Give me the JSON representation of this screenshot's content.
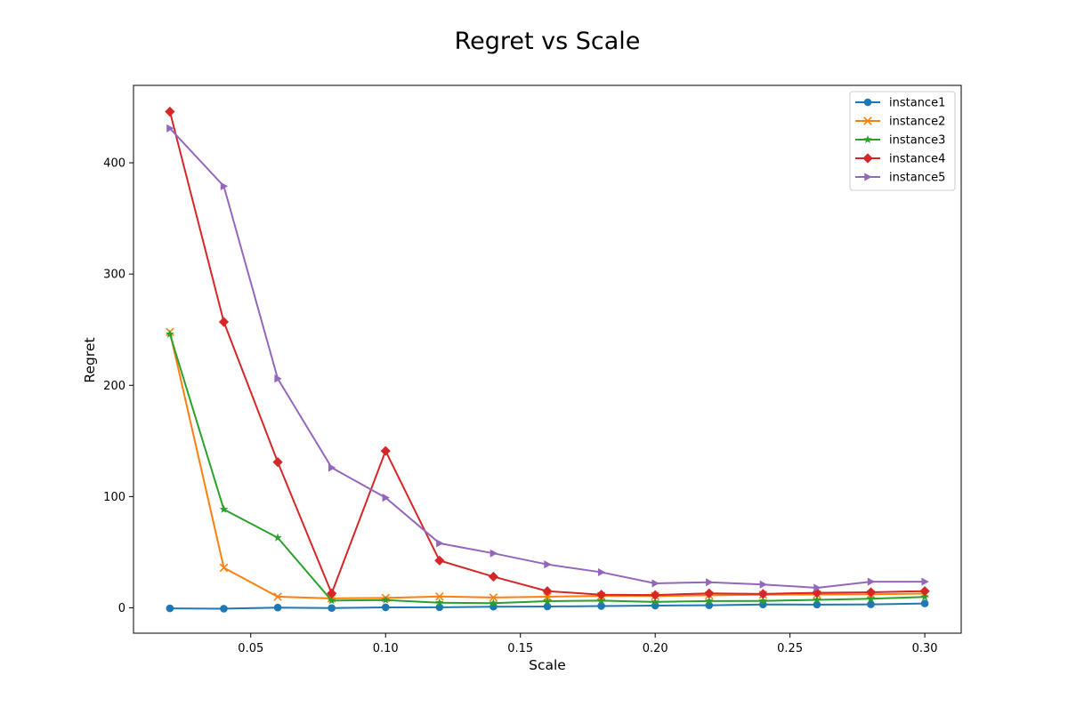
{
  "chart_data": {
    "type": "line",
    "title": "Regret vs Scale",
    "xlabel": "Scale",
    "ylabel": "Regret",
    "xlim": [
      0.0065,
      0.3135
    ],
    "ylim": [
      -22.8,
      469.6
    ],
    "xticks": [
      0.05,
      0.1,
      0.15,
      0.2,
      0.25,
      0.3
    ],
    "xtick_labels": [
      "0.05",
      "0.10",
      "0.15",
      "0.20",
      "0.25",
      "0.30"
    ],
    "yticks": [
      0,
      100,
      200,
      300,
      400
    ],
    "ytick_labels": [
      "0",
      "100",
      "200",
      "300",
      "400"
    ],
    "grid": false,
    "legend_position": "top-right",
    "x": [
      0.02,
      0.04,
      0.06,
      0.08,
      0.1,
      0.12,
      0.14,
      0.16,
      0.18,
      0.2,
      0.22,
      0.24,
      0.26,
      0.28,
      0.3
    ],
    "series": [
      {
        "name": "instance1",
        "color": "#1f77b4",
        "marker": "circle",
        "values": [
          -0.5,
          -0.8,
          0.2,
          -0.2,
          0.4,
          0.5,
          1.0,
          1.2,
          1.6,
          2.0,
          2.3,
          3.0,
          2.9,
          3.1,
          3.9
        ]
      },
      {
        "name": "instance2",
        "color": "#ff7f0e",
        "marker": "x",
        "values": [
          248,
          36,
          10,
          8.5,
          8.9,
          10.2,
          9.3,
          10.0,
          10.7,
          10.6,
          11.3,
          11.8,
          12.0,
          12.2,
          12.8
        ]
      },
      {
        "name": "instance3",
        "color": "#2ca02c",
        "marker": "star",
        "values": [
          246,
          88.5,
          63,
          6.5,
          7.0,
          4.6,
          4.2,
          6.0,
          6.5,
          5.3,
          6.1,
          6.2,
          7.2,
          8.2,
          9.8
        ]
      },
      {
        "name": "instance4",
        "color": "#d62728",
        "marker": "diamond",
        "values": [
          446,
          257,
          131,
          13,
          141,
          42.5,
          28,
          15,
          11.8,
          11.5,
          13,
          12.5,
          13.5,
          14,
          15
        ]
      },
      {
        "name": "instance5",
        "color": "#9467bd",
        "marker": "triangle-right",
        "values": [
          431,
          379,
          206,
          126,
          99,
          58,
          49,
          39,
          32,
          22,
          23,
          21,
          18,
          23.5,
          23.5
        ]
      }
    ]
  }
}
